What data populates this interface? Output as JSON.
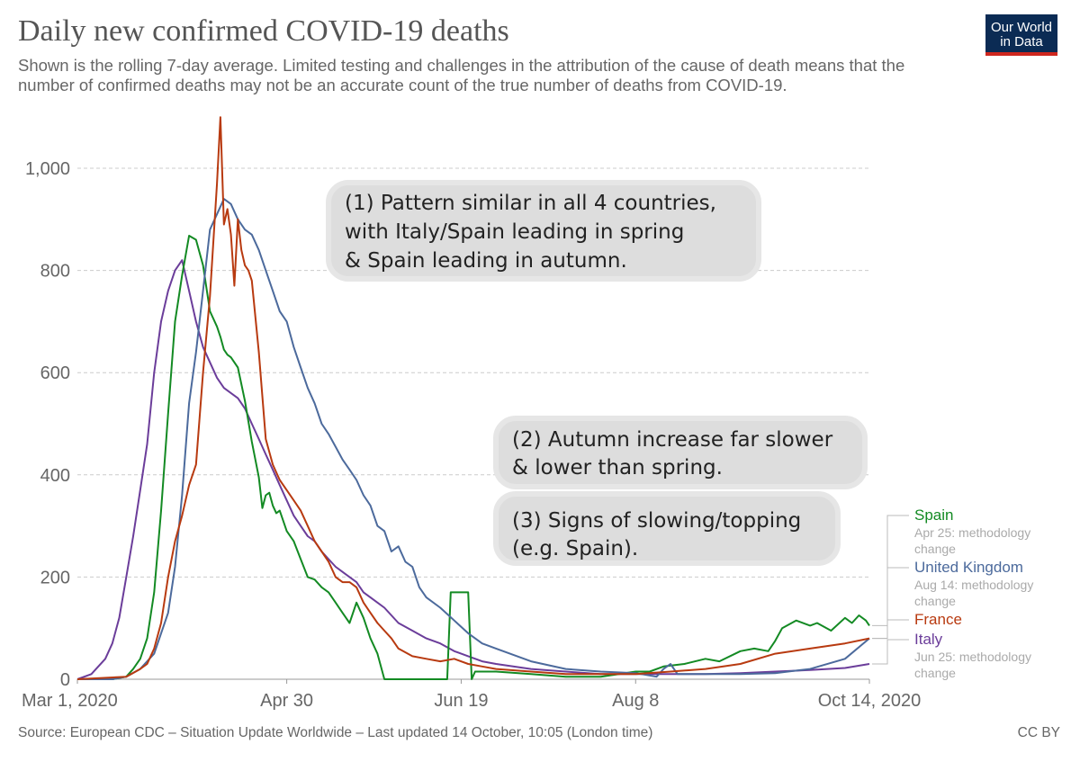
{
  "header": {
    "title": "Daily new confirmed COVID-19 deaths",
    "subtitle": "Shown is the rolling 7-day average. Limited testing and challenges in the attribution of the cause of death means that the number of confirmed deaths may not be an accurate count of the true number of deaths from COVID-19.",
    "logo_line1": "Our World",
    "logo_line2": "in Data"
  },
  "footer": {
    "source": "Source: European CDC – Situation Update Worldwide – Last updated 14 October, 10:05 (London time)",
    "license": "CC BY"
  },
  "colors": {
    "spain": "#138a23",
    "uk": "#4c6a9c",
    "france": "#b83a10",
    "italy": "#6b3d9a",
    "grid": "#cccccc",
    "annotation_bg": "#dddddd"
  },
  "chart_data": {
    "type": "line",
    "title": "Daily new confirmed COVID-19 deaths",
    "xlabel": "",
    "ylabel": "",
    "x_unit": "days since Mar 1, 2020",
    "xlim": [
      0,
      227
    ],
    "ylim": [
      0,
      1000
    ],
    "y_ticks": [
      0,
      200,
      400,
      600,
      800,
      1000
    ],
    "y_tick_labels": [
      "0",
      "200",
      "400",
      "600",
      "800",
      "1,000"
    ],
    "x_ticks": [
      0,
      60,
      110,
      160,
      227
    ],
    "x_tick_labels": [
      "Mar 1, 2020",
      "Apr 30",
      "Jun 19",
      "Aug 8",
      "Oct 14, 2020"
    ],
    "grid": true,
    "legend_position": "right",
    "series": [
      {
        "name": "Spain",
        "color_key": "spain",
        "note": "Apr 25: methodology change",
        "x": [
          0,
          10,
          14,
          16,
          18,
          20,
          22,
          24,
          26,
          28,
          30,
          32,
          34,
          36,
          38,
          40,
          41,
          42,
          43,
          44,
          46,
          48,
          50,
          52,
          53,
          54,
          55,
          56,
          57,
          58,
          60,
          62,
          64,
          66,
          68,
          70,
          72,
          74,
          76,
          78,
          80,
          82,
          84,
          86,
          88,
          90,
          91,
          92,
          96,
          100,
          104,
          106,
          107,
          108,
          112,
          113,
          114,
          120,
          130,
          140,
          150,
          160,
          164,
          168,
          174,
          180,
          184,
          190,
          194,
          198,
          200,
          202,
          206,
          210,
          212,
          216,
          220,
          222,
          224,
          226,
          227
        ],
        "y": [
          0,
          0,
          5,
          20,
          40,
          80,
          170,
          330,
          520,
          700,
          790,
          868,
          860,
          810,
          720,
          690,
          670,
          645,
          635,
          630,
          610,
          545,
          465,
          395,
          335,
          360,
          365,
          340,
          325,
          330,
          290,
          270,
          235,
          200,
          195,
          180,
          170,
          150,
          130,
          110,
          150,
          120,
          80,
          50,
          0,
          0,
          0,
          0,
          0,
          0,
          0,
          0,
          170,
          170,
          170,
          0,
          15,
          15,
          10,
          5,
          5,
          15,
          15,
          25,
          30,
          40,
          35,
          55,
          60,
          55,
          75,
          100,
          115,
          105,
          110,
          95,
          120,
          110,
          125,
          115,
          105
        ]
      },
      {
        "name": "United Kingdom",
        "color_key": "uk",
        "note": "Aug 14: methodology change",
        "x": [
          0,
          10,
          14,
          18,
          22,
          26,
          28,
          30,
          32,
          34,
          36,
          38,
          40,
          42,
          44,
          46,
          48,
          50,
          52,
          54,
          56,
          58,
          60,
          62,
          64,
          66,
          68,
          70,
          72,
          74,
          76,
          78,
          80,
          82,
          84,
          86,
          88,
          90,
          92,
          94,
          96,
          98,
          100,
          104,
          108,
          112,
          116,
          120,
          130,
          140,
          150,
          160,
          166,
          168,
          170,
          172,
          176,
          184,
          190,
          200,
          210,
          220,
          227
        ],
        "y": [
          0,
          0,
          5,
          20,
          50,
          130,
          220,
          360,
          540,
          640,
          760,
          880,
          910,
          940,
          930,
          900,
          880,
          870,
          840,
          800,
          760,
          720,
          700,
          650,
          610,
          570,
          540,
          500,
          480,
          455,
          430,
          410,
          390,
          360,
          340,
          300,
          290,
          250,
          260,
          230,
          220,
          180,
          160,
          140,
          115,
          90,
          70,
          60,
          35,
          20,
          15,
          12,
          5,
          20,
          30,
          10,
          10,
          10,
          10,
          12,
          20,
          40,
          80
        ]
      },
      {
        "name": "France",
        "color_key": "france",
        "note": "",
        "x": [
          0,
          14,
          18,
          20,
          22,
          24,
          26,
          28,
          30,
          32,
          34,
          36,
          38,
          40,
          41,
          42,
          43,
          44,
          45,
          46,
          47,
          48,
          49,
          50,
          52,
          54,
          56,
          58,
          60,
          62,
          64,
          66,
          68,
          70,
          72,
          74,
          76,
          78,
          80,
          82,
          84,
          86,
          88,
          90,
          92,
          96,
          100,
          104,
          108,
          112,
          116,
          120,
          130,
          140,
          150,
          160,
          170,
          180,
          190,
          200,
          210,
          220,
          227
        ],
        "y": [
          0,
          5,
          20,
          30,
          60,
          110,
          200,
          270,
          320,
          380,
          420,
          600,
          750,
          970,
          1100,
          890,
          920,
          870,
          770,
          900,
          840,
          810,
          800,
          780,
          640,
          470,
          420,
          390,
          370,
          350,
          330,
          300,
          270,
          250,
          230,
          200,
          190,
          190,
          180,
          150,
          130,
          110,
          95,
          80,
          60,
          45,
          40,
          35,
          40,
          30,
          25,
          20,
          15,
          10,
          10,
          10,
          15,
          20,
          30,
          50,
          60,
          70,
          80
        ]
      },
      {
        "name": "Italy",
        "color_key": "italy",
        "note": "Jun 25: methodology change",
        "x": [
          0,
          4,
          8,
          10,
          12,
          14,
          16,
          18,
          20,
          22,
          24,
          26,
          28,
          30,
          32,
          34,
          36,
          38,
          40,
          42,
          44,
          46,
          48,
          50,
          52,
          54,
          56,
          58,
          60,
          62,
          64,
          66,
          68,
          70,
          72,
          74,
          76,
          78,
          80,
          82,
          84,
          86,
          88,
          90,
          92,
          96,
          100,
          104,
          108,
          112,
          116,
          120,
          130,
          140,
          150,
          160,
          170,
          180,
          190,
          200,
          210,
          220,
          227
        ],
        "y": [
          0,
          10,
          40,
          70,
          120,
          200,
          280,
          370,
          460,
          600,
          700,
          760,
          800,
          820,
          760,
          700,
          650,
          620,
          590,
          570,
          560,
          550,
          530,
          500,
          470,
          440,
          410,
          380,
          350,
          320,
          300,
          280,
          270,
          250,
          235,
          220,
          210,
          200,
          190,
          170,
          160,
          150,
          140,
          125,
          110,
          95,
          80,
          70,
          55,
          45,
          35,
          30,
          20,
          15,
          10,
          10,
          10,
          10,
          12,
          15,
          18,
          22,
          30
        ]
      }
    ],
    "annotations": [
      {
        "lines": [
          "(1) Pattern similar in all 4 countries,",
          "with Italy/Spain leading in spring",
          "& Spain leading in autumn."
        ]
      },
      {
        "lines": [
          "(2) Autumn increase far slower",
          "& lower than spring."
        ]
      },
      {
        "lines": [
          "(3) Signs of slowing/topping",
          "(e.g. Spain)."
        ]
      }
    ]
  }
}
